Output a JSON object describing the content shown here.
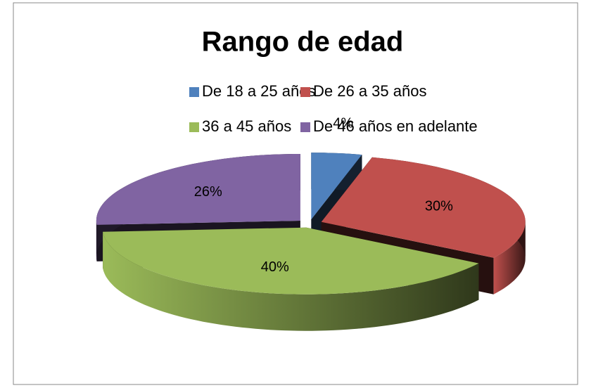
{
  "chart_data": {
    "type": "pie3d",
    "title": "Rango de edad",
    "categories": [
      "De 18 a 25 años",
      "De 26 a 35 años",
      "36 a 45 años",
      "De 46 años en adelante"
    ],
    "values": [
      4,
      30,
      40,
      26
    ],
    "value_labels": [
      "4%",
      "30%",
      "40%",
      "26%"
    ],
    "colors": [
      "#4f81bd",
      "#c0504d",
      "#9bbb59",
      "#8064a2"
    ],
    "legend": "top"
  }
}
